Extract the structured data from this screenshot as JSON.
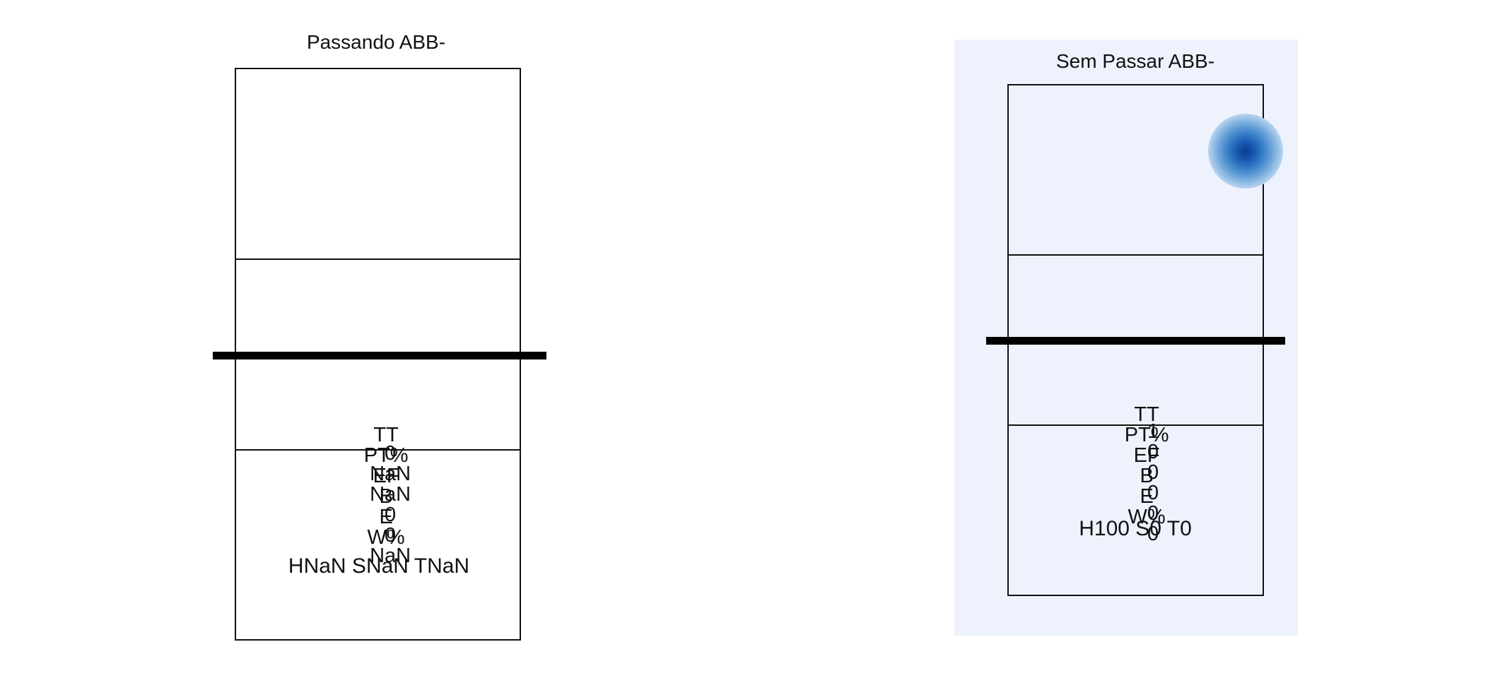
{
  "panels": [
    {
      "title": "Passando ABB-",
      "stats_headers": [
        "TT",
        "PT%",
        "EF",
        "B",
        "E",
        "W%"
      ],
      "stats_values": [
        "0",
        "NaN",
        "NaN",
        "0",
        "0",
        "NaN"
      ],
      "summary": "HNaN SNaN TNaN",
      "background": "#ffffff"
    },
    {
      "title": "Sem Passar ABB-",
      "stats_headers": [
        "TT",
        "PT%",
        "EF",
        "B",
        "E",
        "W%"
      ],
      "stats_values": [
        "1",
        "0",
        "0",
        "0",
        "0",
        "0"
      ],
      "summary": "H100 S0 T0",
      "background": "#eef2fd",
      "heat_color": "#1553ad"
    }
  ]
}
